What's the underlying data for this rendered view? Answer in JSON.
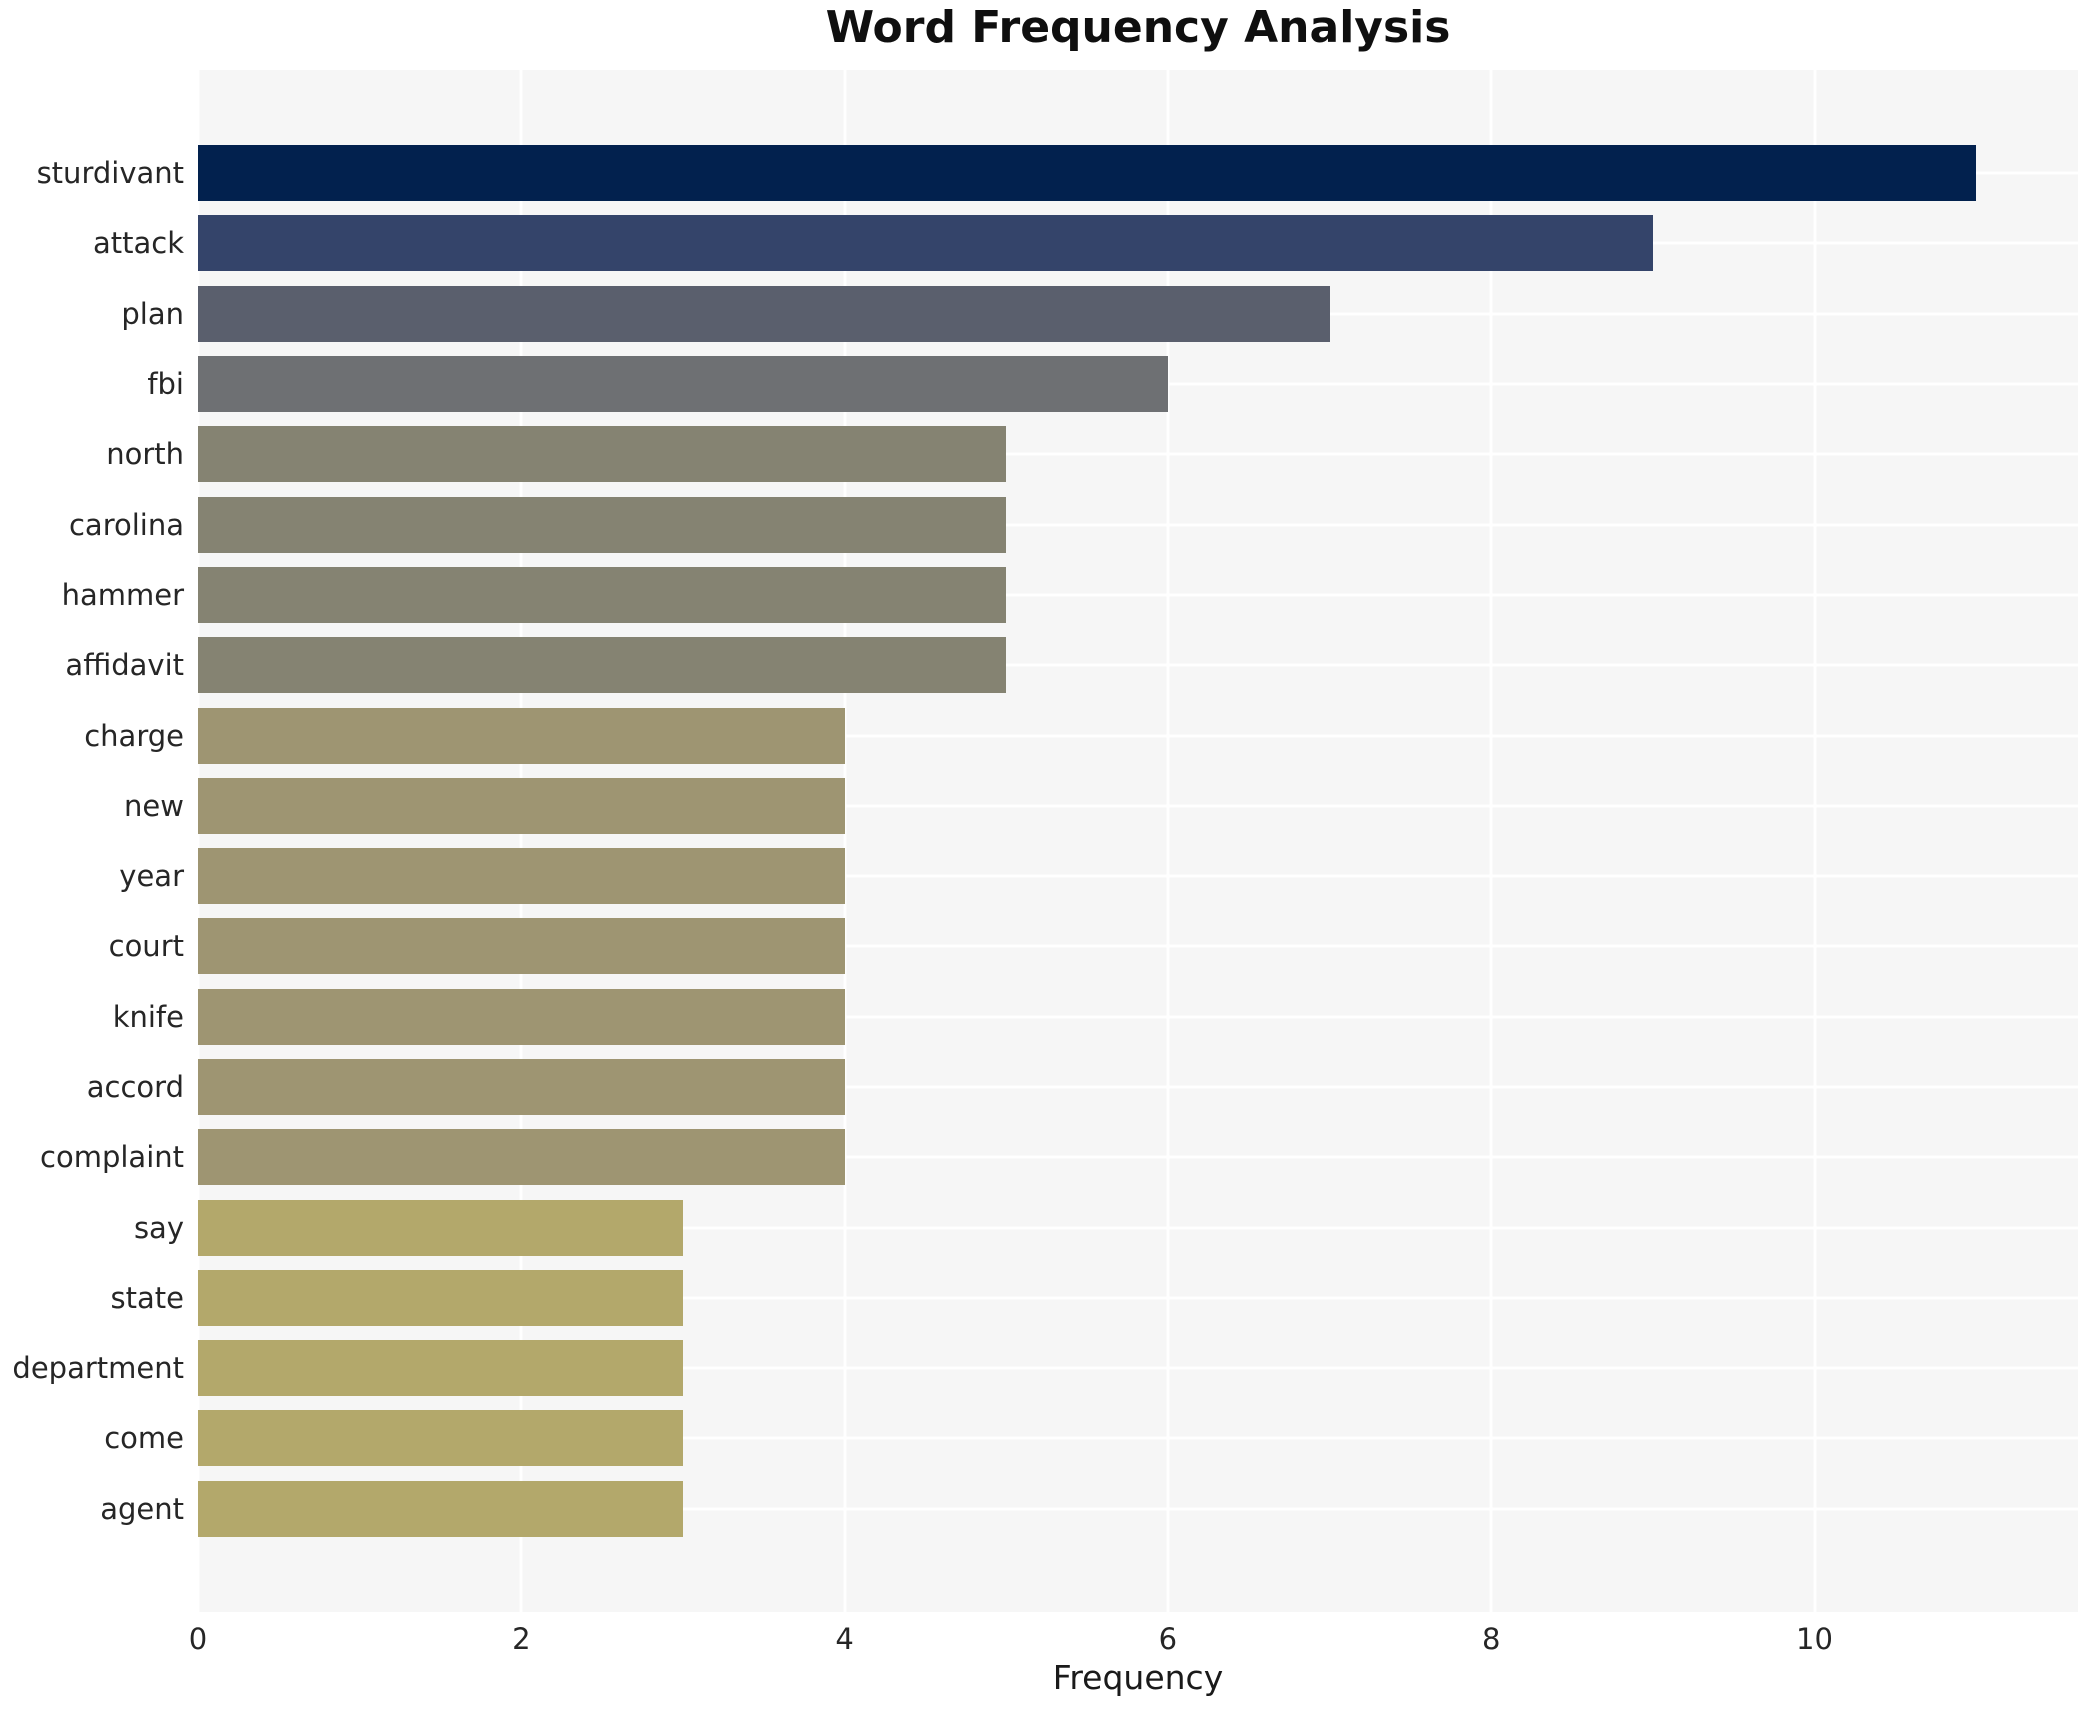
{
  "chart_data": {
    "type": "bar",
    "orientation": "horizontal",
    "title": "Word Frequency Analysis",
    "xlabel": "Frequency",
    "ylabel": "",
    "x_ticks": [
      0,
      2,
      4,
      6,
      8,
      10
    ],
    "xlim": [
      0,
      11.63
    ],
    "grid": true,
    "legend_position": "none",
    "plot_background": "#f6f6f6",
    "grid_color": "#ffffff",
    "text_color": "#262626",
    "categories": [
      "sturdivant",
      "attack",
      "plan",
      "fbi",
      "north",
      "carolina",
      "hammer",
      "affidavit",
      "charge",
      "new",
      "year",
      "court",
      "knife",
      "accord",
      "complaint",
      "say",
      "state",
      "department",
      "come",
      "agent"
    ],
    "values": [
      11,
      9,
      7,
      6,
      5,
      5,
      5,
      5,
      4,
      4,
      4,
      4,
      4,
      4,
      4,
      3,
      3,
      3,
      3,
      3
    ],
    "bar_colors": [
      "#02214e",
      "#34446a",
      "#5a5f6d",
      "#6e7073",
      "#858372",
      "#858372",
      "#858372",
      "#858372",
      "#9e9572",
      "#9e9572",
      "#9e9572",
      "#9e9572",
      "#9e9572",
      "#9e9572",
      "#9e9572",
      "#b3a86b",
      "#b3a86b",
      "#b3a86b",
      "#b3a86b",
      "#b3a86b"
    ]
  }
}
